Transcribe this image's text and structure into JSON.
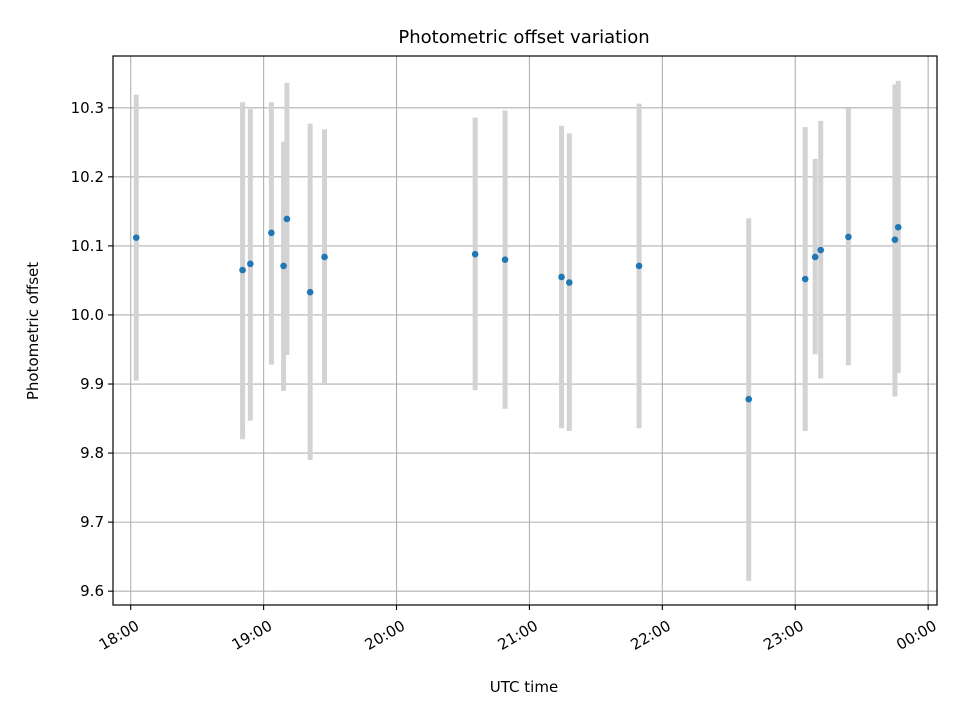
{
  "chart_data": {
    "type": "scatter",
    "title": "Photometric offset variation",
    "xlabel": "UTC time",
    "ylabel": "Photometric offset",
    "x_unit": "time (hh:mm)",
    "x_ticks": [
      "18:00",
      "19:00",
      "20:00",
      "21:00",
      "22:00",
      "23:00",
      "00:00"
    ],
    "xlim": [
      "17:52",
      "00:04"
    ],
    "y_ticks": [
      9.6,
      9.7,
      9.8,
      9.9,
      10.0,
      10.1,
      10.2,
      10.3
    ],
    "ylim": [
      9.58,
      10.375
    ],
    "grid": true,
    "point_color": "#1f77b4",
    "errorbar_color": "#d3d3d3",
    "points": [
      {
        "time": "18:02.5",
        "y": 10.112,
        "ylow": 9.905,
        "yhigh": 10.319
      },
      {
        "time": "18:50.5",
        "y": 10.065,
        "ylow": 9.82,
        "yhigh": 10.308
      },
      {
        "time": "18:54",
        "y": 10.074,
        "ylow": 9.847,
        "yhigh": 10.298
      },
      {
        "time": "19:03.5",
        "y": 10.119,
        "ylow": 9.928,
        "yhigh": 10.308
      },
      {
        "time": "19:09",
        "y": 10.071,
        "ylow": 9.89,
        "yhigh": 10.251
      },
      {
        "time": "19:10.5",
        "y": 10.139,
        "ylow": 9.942,
        "yhigh": 10.336
      },
      {
        "time": "19:21",
        "y": 10.033,
        "ylow": 9.79,
        "yhigh": 10.277
      },
      {
        "time": "19:27.5",
        "y": 10.084,
        "ylow": 9.9,
        "yhigh": 10.269
      },
      {
        "time": "20:35.5",
        "y": 10.088,
        "ylow": 9.891,
        "yhigh": 10.286
      },
      {
        "time": "20:49",
        "y": 10.08,
        "ylow": 9.864,
        "yhigh": 10.296
      },
      {
        "time": "21:14.5",
        "y": 10.055,
        "ylow": 9.836,
        "yhigh": 10.274
      },
      {
        "time": "21:18",
        "y": 10.047,
        "ylow": 9.832,
        "yhigh": 10.263
      },
      {
        "time": "21:49.5",
        "y": 10.071,
        "ylow": 9.836,
        "yhigh": 10.306
      },
      {
        "time": "22:39",
        "y": 9.878,
        "ylow": 9.615,
        "yhigh": 10.14
      },
      {
        "time": "23:04.5",
        "y": 10.052,
        "ylow": 9.832,
        "yhigh": 10.272
      },
      {
        "time": "23:09",
        "y": 10.084,
        "ylow": 9.943,
        "yhigh": 10.226
      },
      {
        "time": "23:11.5",
        "y": 10.094,
        "ylow": 9.908,
        "yhigh": 10.281
      },
      {
        "time": "23:24",
        "y": 10.113,
        "ylow": 9.927,
        "yhigh": 10.299
      },
      {
        "time": "23:45",
        "y": 10.109,
        "ylow": 9.882,
        "yhigh": 10.334
      },
      {
        "time": "23:46.5",
        "y": 10.127,
        "ylow": 9.916,
        "yhigh": 10.339
      }
    ]
  }
}
